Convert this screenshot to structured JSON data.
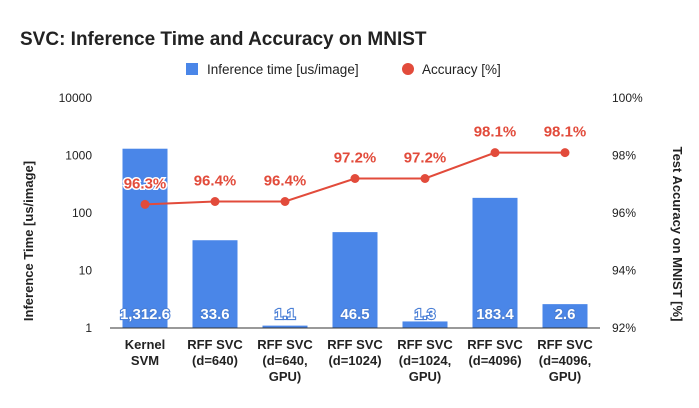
{
  "chart_data": {
    "type": "bar",
    "title": "SVC: Inference Time and Accuracy on MNIST",
    "categories": [
      [
        "Kernel",
        "SVM"
      ],
      [
        "RFF SVC",
        "(d=640)"
      ],
      [
        "RFF SVC",
        "(d=640,",
        "GPU)"
      ],
      [
        "RFF SVC",
        "(d=1024)"
      ],
      [
        "RFF SVC",
        "(d=1024,",
        "GPU)"
      ],
      [
        "RFF SVC",
        "(d=4096)"
      ],
      [
        "RFF SVC",
        "(d=4096,",
        "GPU)"
      ]
    ],
    "series": [
      {
        "name": "Inference time [us/image]",
        "type": "bar",
        "axis": "left",
        "color": "#4a86e8",
        "values": [
          1312.6,
          33.6,
          1.1,
          46.5,
          1.3,
          183.4,
          2.6
        ],
        "labels": [
          "1,312.6",
          "33.6",
          "1.1",
          "46.5",
          "1.3",
          "183.4",
          "2.6"
        ]
      },
      {
        "name": "Accuracy [%]",
        "type": "line",
        "axis": "right",
        "color": "#e24b3b",
        "values": [
          96.3,
          96.4,
          96.4,
          97.2,
          97.2,
          98.1,
          98.1
        ],
        "labels": [
          "96.3%",
          "96.4%",
          "96.4%",
          "97.2%",
          "97.2%",
          "98.1%",
          "98.1%"
        ]
      }
    ],
    "y_left": {
      "label": "Inference Time [us/image]",
      "scale": "log",
      "ylim": [
        1,
        10000
      ],
      "ticks": [
        1,
        10,
        100,
        1000,
        10000
      ],
      "tick_labels": [
        "1",
        "10",
        "100",
        "1000",
        "10000"
      ]
    },
    "y_right": {
      "label": "Test Accuracy on MNIST [%]",
      "scale": "linear",
      "ylim": [
        92,
        100
      ],
      "ticks": [
        92,
        94,
        96,
        98,
        100
      ],
      "tick_labels": [
        "92%",
        "94%",
        "96%",
        "98%",
        "100%"
      ]
    },
    "legend_position": "top",
    "grid": false
  }
}
